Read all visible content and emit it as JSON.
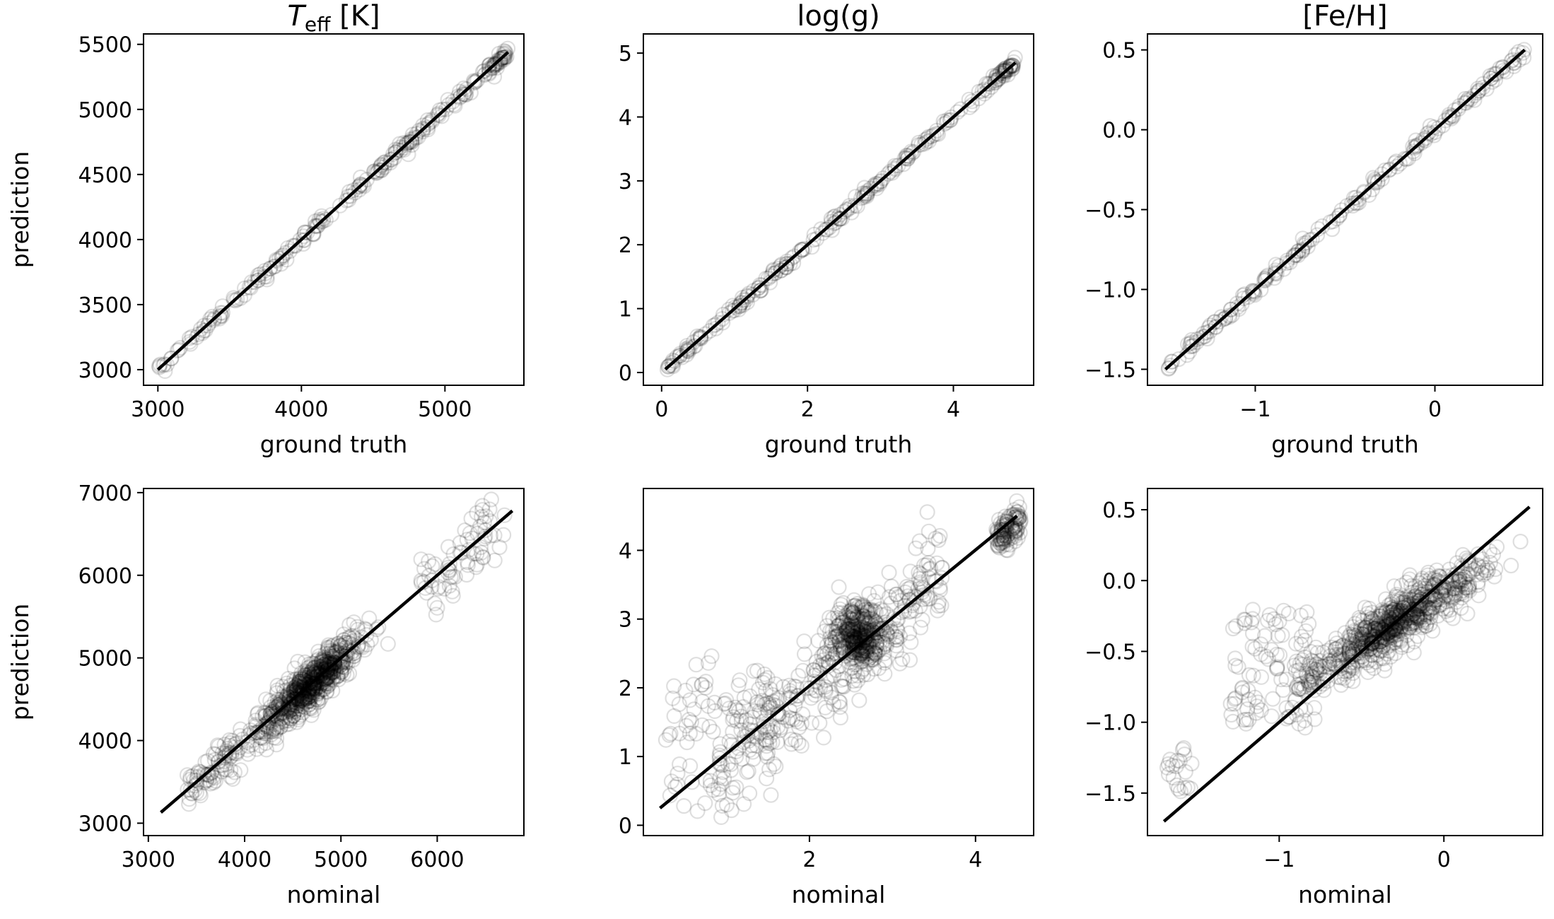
{
  "chart_data": [
    {
      "type": "scatter",
      "row": 0,
      "col": 0,
      "title_main": "T",
      "title_sub": "eff",
      "title_rest": " [K]",
      "xlabel": "ground truth",
      "ylabel": "prediction",
      "xlim": [
        2900,
        5550
      ],
      "ylim": [
        2880,
        5580
      ],
      "xticks": [
        3000,
        4000,
        5000
      ],
      "xtick_labels": [
        "3000",
        "4000",
        "5000"
      ],
      "yticks": [
        3000,
        3500,
        4000,
        4500,
        5000,
        5500
      ],
      "ytick_labels": [
        "3000",
        "3500",
        "4000",
        "4500",
        "5000",
        "5500"
      ],
      "line": [
        [
          3000,
          3000
        ],
        [
          5440,
          5440
        ]
      ],
      "scatter": {
        "kind": "diag",
        "n": 220,
        "xmin": 3000,
        "xmax": 5440,
        "noise": 22,
        "cluster_at_max": 28
      }
    },
    {
      "type": "scatter",
      "row": 0,
      "col": 1,
      "title_main": "log(g)",
      "xlabel": "ground truth",
      "ylabel": "",
      "xlim": [
        -0.25,
        5.1
      ],
      "ylim": [
        -0.2,
        5.3
      ],
      "xticks": [
        0,
        2,
        4
      ],
      "xtick_labels": [
        "0",
        "2",
        "4"
      ],
      "yticks": [
        0,
        1,
        2,
        3,
        4,
        5
      ],
      "ytick_labels": [
        "0",
        "1",
        "2",
        "3",
        "4",
        "5"
      ],
      "line": [
        [
          0.05,
          0.05
        ],
        [
          4.85,
          4.85
        ]
      ],
      "scatter": {
        "kind": "diag",
        "n": 220,
        "xmin": 0.05,
        "xmax": 4.85,
        "noise": 0.04,
        "cluster_at_max": 30
      }
    },
    {
      "type": "scatter",
      "row": 0,
      "col": 2,
      "title_main": "[Fe/H]",
      "xlabel": "ground truth",
      "ylabel": "",
      "xlim": [
        -1.6,
        0.6
      ],
      "ylim": [
        -1.6,
        0.6
      ],
      "xticks": [
        -1,
        0
      ],
      "xtick_labels": [
        "−1",
        "0"
      ],
      "yticks": [
        -1.5,
        -1.0,
        -0.5,
        0.0,
        0.5
      ],
      "ytick_labels": [
        "−1.5",
        "−1.0",
        "−0.5",
        "0.0",
        "0.5"
      ],
      "line": [
        [
          -1.5,
          -1.5
        ],
        [
          0.5,
          0.5
        ]
      ],
      "scatter": {
        "kind": "diag",
        "n": 200,
        "xmin": -1.5,
        "xmax": 0.5,
        "noise": 0.02,
        "cluster_at_max": 0
      }
    },
    {
      "type": "scatter",
      "row": 1,
      "col": 0,
      "xlabel": "nominal",
      "ylabel": "prediction",
      "xlim": [
        2950,
        6900
      ],
      "ylim": [
        2850,
        7050
      ],
      "xticks": [
        3000,
        4000,
        5000,
        6000
      ],
      "xtick_labels": [
        "3000",
        "4000",
        "5000",
        "6000"
      ],
      "yticks": [
        3000,
        4000,
        5000,
        6000,
        7000
      ],
      "ytick_labels": [
        "3000",
        "4000",
        "5000",
        "6000",
        "7000"
      ],
      "line": [
        [
          3130,
          3130
        ],
        [
          6780,
          6780
        ]
      ],
      "scatter": {
        "kind": "teff",
        "n": 900
      }
    },
    {
      "type": "scatter",
      "row": 1,
      "col": 1,
      "xlabel": "nominal",
      "ylabel": "",
      "xlim": [
        0.0,
        4.7
      ],
      "ylim": [
        -0.15,
        4.9
      ],
      "xticks": [
        2,
        4
      ],
      "xtick_labels": [
        "2",
        "4"
      ],
      "yticks": [
        0,
        1,
        2,
        3,
        4
      ],
      "ytick_labels": [
        "0",
        "1",
        "2",
        "3",
        "4"
      ],
      "line": [
        [
          0.2,
          0.25
        ],
        [
          4.5,
          4.5
        ]
      ],
      "scatter": {
        "kind": "logg",
        "n": 900
      }
    },
    {
      "type": "scatter",
      "row": 1,
      "col": 2,
      "xlabel": "nominal",
      "ylabel": "",
      "xlim": [
        -1.8,
        0.6
      ],
      "ylim": [
        -1.8,
        0.65
      ],
      "xticks": [
        -1,
        0
      ],
      "xtick_labels": [
        "−1",
        "0"
      ],
      "yticks": [
        -1.5,
        -1.0,
        -0.5,
        0.0,
        0.5
      ],
      "ytick_labels": [
        "−1.5",
        "−1.0",
        "−0.5",
        "0.0",
        "0.5"
      ],
      "line": [
        [
          -1.7,
          -1.7
        ],
        [
          0.52,
          0.52
        ]
      ],
      "scatter": {
        "kind": "feh",
        "n": 900
      }
    }
  ]
}
